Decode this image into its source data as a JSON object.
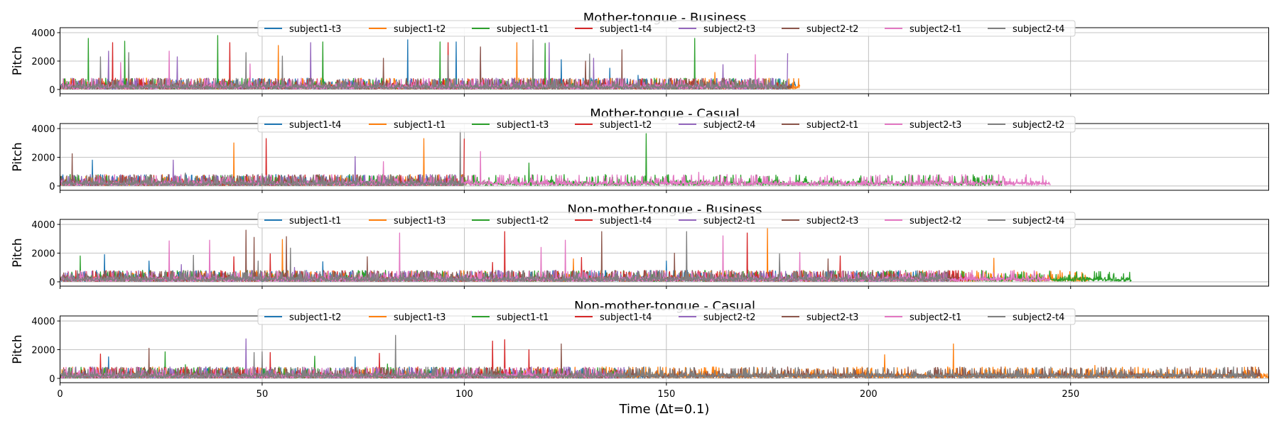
{
  "chart_data": [
    {
      "type": "line",
      "title": "Mother-tongue - Business",
      "ylabel": "Pitch",
      "xlabel": "",
      "xlim": [
        0,
        299
      ],
      "ylim": [
        -300,
        4350
      ],
      "xticks": [
        0,
        50,
        100,
        150,
        200,
        250
      ],
      "yticks": [
        0,
        2000,
        4000
      ],
      "grid": true,
      "legend": "top-center",
      "series": [
        {
          "name": "subject1-t3",
          "color": "#1f77b4",
          "x_end": 182,
          "spikes": [
            [
              86,
              3500
            ],
            [
              98,
              3350
            ],
            [
              124,
              2100
            ],
            [
              136,
              1500
            ],
            [
              143,
              1000
            ]
          ]
        },
        {
          "name": "subject1-t2",
          "color": "#ff7f0e",
          "x_end": 183,
          "spikes": [
            [
              54,
              3100
            ],
            [
              113,
              3300
            ],
            [
              162,
              1200
            ]
          ]
        },
        {
          "name": "subject1-t1",
          "color": "#2ca02c",
          "x_end": 180,
          "spikes": [
            [
              7,
              3600
            ],
            [
              16,
              3400
            ],
            [
              39,
              3800
            ],
            [
              65,
              3350
            ],
            [
              94,
              3350
            ],
            [
              120,
              3250
            ],
            [
              157,
              3600
            ]
          ]
        },
        {
          "name": "subject1-t4",
          "color": "#d62728",
          "x_end": 178,
          "spikes": [
            [
              13,
              3300
            ],
            [
              42,
              3300
            ],
            [
              96,
              3300
            ]
          ]
        },
        {
          "name": "subject2-t3",
          "color": "#9467bd",
          "x_end": 180,
          "spikes": [
            [
              12,
              2700
            ],
            [
              29,
              2300
            ],
            [
              62,
              3300
            ],
            [
              104,
              2900
            ],
            [
              121,
              3300
            ],
            [
              132,
              2200
            ],
            [
              164,
              1750
            ],
            [
              180,
              2550
            ]
          ]
        },
        {
          "name": "subject2-t2",
          "color": "#8c564b",
          "x_end": 181,
          "spikes": [
            [
              80,
              2200
            ],
            [
              104,
              3000
            ],
            [
              130,
              2000
            ],
            [
              139,
              2800
            ]
          ]
        },
        {
          "name": "subject2-t1",
          "color": "#e377c2",
          "x_end": 176,
          "spikes": [
            [
              15,
              1900
            ],
            [
              27,
              2700
            ],
            [
              47,
              1800
            ],
            [
              172,
              2450
            ]
          ]
        },
        {
          "name": "subject2-t4",
          "color": "#7f7f7f",
          "x_end": 180,
          "spikes": [
            [
              10,
              2300
            ],
            [
              17,
              2600
            ],
            [
              46,
              2600
            ],
            [
              55,
              2350
            ],
            [
              96,
              2400
            ],
            [
              117,
              3500
            ],
            [
              131,
              2500
            ]
          ]
        }
      ]
    },
    {
      "type": "line",
      "title": "Mother-tongue - Casual",
      "ylabel": "Pitch",
      "xlabel": "",
      "xlim": [
        0,
        299
      ],
      "ylim": [
        -300,
        4350
      ],
      "xticks": [
        0,
        50,
        100,
        150,
        200,
        250
      ],
      "yticks": [
        0,
        2000,
        4000
      ],
      "grid": true,
      "legend": "top-center",
      "series": [
        {
          "name": "subject1-t4",
          "color": "#1f77b4",
          "x_end": 100,
          "spikes": [
            [
              8,
              1800
            ]
          ]
        },
        {
          "name": "subject1-t1",
          "color": "#ff7f0e",
          "x_end": 101,
          "spikes": [
            [
              43,
              3000
            ],
            [
              90,
              3300
            ]
          ]
        },
        {
          "name": "subject1-t3",
          "color": "#2ca02c",
          "x_end": 233,
          "spikes": [
            [
              116,
              1600
            ],
            [
              145,
              3650
            ],
            [
              210,
              800
            ]
          ]
        },
        {
          "name": "subject1-t2",
          "color": "#d62728",
          "x_end": 100,
          "spikes": [
            [
              51,
              3300
            ],
            [
              100,
              3300
            ]
          ]
        },
        {
          "name": "subject2-t4",
          "color": "#9467bd",
          "x_end": 100,
          "spikes": [
            [
              28,
              1800
            ],
            [
              73,
              2050
            ]
          ]
        },
        {
          "name": "subject2-t1",
          "color": "#8c564b",
          "x_end": 100,
          "spikes": [
            [
              3,
              2250
            ]
          ]
        },
        {
          "name": "subject2-t3",
          "color": "#e377c2",
          "x_end": 245,
          "spikes": [
            [
              80,
              1700
            ],
            [
              104,
              2400
            ],
            [
              158,
              950
            ],
            [
              165,
              800
            ]
          ]
        },
        {
          "name": "subject2-t2",
          "color": "#7f7f7f",
          "x_end": 100,
          "spikes": [
            [
              31,
              900
            ],
            [
              50,
              850
            ],
            [
              99,
              3900
            ]
          ]
        }
      ]
    },
    {
      "type": "line",
      "title": "Non-mother-tongue - Business",
      "ylabel": "Pitch",
      "xlabel": "",
      "xlim": [
        0,
        299
      ],
      "ylim": [
        -300,
        4350
      ],
      "xticks": [
        0,
        50,
        100,
        150,
        200,
        250
      ],
      "yticks": [
        0,
        2000,
        4000
      ],
      "grid": true,
      "legend": "top-center",
      "series": [
        {
          "name": "subject1-t1",
          "color": "#1f77b4",
          "x_end": 220,
          "spikes": [
            [
              11,
              1900
            ],
            [
              22,
              1450
            ],
            [
              65,
              1400
            ],
            [
              100,
              700
            ],
            [
              150,
              1450
            ]
          ]
        },
        {
          "name": "subject1-t3",
          "color": "#ff7f0e",
          "x_end": 255,
          "spikes": [
            [
              55,
              2950
            ],
            [
              127,
              1600
            ],
            [
              175,
              3800
            ],
            [
              231,
              1650
            ]
          ]
        },
        {
          "name": "subject1-t2",
          "color": "#2ca02c",
          "x_end": 265,
          "spikes": [
            [
              5,
              1800
            ],
            [
              213,
              700
            ]
          ]
        },
        {
          "name": "subject1-t4",
          "color": "#d62728",
          "x_end": 225,
          "spikes": [
            [
              43,
              1750
            ],
            [
              52,
              1950
            ],
            [
              107,
              1350
            ],
            [
              110,
              3500
            ],
            [
              129,
              1700
            ],
            [
              170,
              3400
            ],
            [
              193,
              1800
            ]
          ]
        },
        {
          "name": "subject2-t1",
          "color": "#9467bd",
          "x_end": 220,
          "spikes": [
            [
              30,
              1200
            ],
            [
              58,
              1000
            ]
          ]
        },
        {
          "name": "subject2-t3",
          "color": "#8c564b",
          "x_end": 222,
          "spikes": [
            [
              46,
              3600
            ],
            [
              48,
              3100
            ],
            [
              56,
              3150
            ],
            [
              76,
              1750
            ],
            [
              134,
              3500
            ],
            [
              152,
              2000
            ],
            [
              190,
              1600
            ]
          ]
        },
        {
          "name": "subject2-t2",
          "color": "#e377c2",
          "x_end": 245,
          "spikes": [
            [
              27,
              2850
            ],
            [
              37,
              2900
            ],
            [
              84,
              3400
            ],
            [
              119,
              2400
            ],
            [
              125,
              2900
            ],
            [
              164,
              3200
            ],
            [
              183,
              2050
            ]
          ]
        },
        {
          "name": "subject2-t4",
          "color": "#7f7f7f",
          "x_end": 220,
          "spikes": [
            [
              33,
              1850
            ],
            [
              49,
              1450
            ],
            [
              57,
              2350
            ],
            [
              155,
              3500
            ],
            [
              178,
              1950
            ],
            [
              221,
              2550
            ]
          ]
        }
      ]
    },
    {
      "type": "line",
      "title": "Non-mother-tongue - Casual",
      "ylabel": "Pitch",
      "xlabel": "Time (Δt=0.1)",
      "xlim": [
        0,
        299
      ],
      "ylim": [
        -300,
        4350
      ],
      "xticks": [
        0,
        50,
        100,
        150,
        200,
        250
      ],
      "yticks": [
        0,
        2000,
        4000
      ],
      "grid": true,
      "legend": "top-center",
      "series": [
        {
          "name": "subject1-t2",
          "color": "#1f77b4",
          "x_end": 145,
          "spikes": [
            [
              12,
              1500
            ],
            [
              73,
              1500
            ],
            [
              135,
              650
            ]
          ]
        },
        {
          "name": "subject1-t3",
          "color": "#ff7f0e",
          "x_end": 299,
          "spikes": [
            [
              204,
              1650
            ],
            [
              221,
              2400
            ],
            [
              256,
              900
            ]
          ]
        },
        {
          "name": "subject1-t1",
          "color": "#2ca02c",
          "x_end": 140,
          "spikes": [
            [
              26,
              1850
            ],
            [
              31,
              950
            ],
            [
              63,
              1550
            ],
            [
              81,
              1000
            ]
          ]
        },
        {
          "name": "subject1-t4",
          "color": "#d62728",
          "x_end": 140,
          "spikes": [
            [
              10,
              1700
            ],
            [
              52,
              1800
            ],
            [
              79,
              1750
            ],
            [
              107,
              2600
            ],
            [
              110,
              2700
            ],
            [
              116,
              2000
            ]
          ]
        },
        {
          "name": "subject2-t2",
          "color": "#9467bd",
          "x_end": 140,
          "spikes": [
            [
              46,
              2750
            ]
          ]
        },
        {
          "name": "subject2-t3",
          "color": "#8c564b",
          "x_end": 297,
          "spikes": [
            [
              22,
              2100
            ],
            [
              124,
              2400
            ],
            [
              190,
              600
            ]
          ]
        },
        {
          "name": "subject2-t1",
          "color": "#e377c2",
          "x_end": 140,
          "spikes": [
            [
              67,
              500
            ]
          ]
        },
        {
          "name": "subject2-t4",
          "color": "#7f7f7f",
          "x_end": 296,
          "spikes": [
            [
              48,
              1800
            ],
            [
              50,
              1850
            ],
            [
              83,
              3000
            ]
          ]
        }
      ]
    }
  ]
}
